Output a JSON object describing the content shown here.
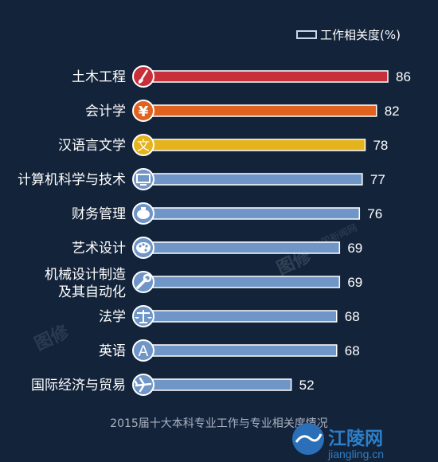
{
  "chart_data": {
    "type": "bar",
    "orientation": "horizontal",
    "legend": {
      "label": "工作相关度(%)",
      "position": "top-right"
    },
    "categories": [
      {
        "label": "土木工程",
        "value": 86,
        "color": "#c7303a",
        "icon": "brush-icon"
      },
      {
        "label": "会计学",
        "value": 82,
        "color": "#e0621f",
        "icon": "yen-icon"
      },
      {
        "label": "汉语言文学",
        "value": 78,
        "color": "#e4b31d",
        "icon": "wen-character-icon"
      },
      {
        "label": "计算机科学与技术",
        "value": 77,
        "color": "#6f96c6",
        "icon": "monitor-icon"
      },
      {
        "label": "财务管理",
        "value": 76,
        "color": "#6f96c6",
        "icon": "piggy-bank-icon"
      },
      {
        "label": "艺术设计",
        "value": 69,
        "color": "#6f96c6",
        "icon": "palette-icon"
      },
      {
        "label": "机械设计制造\n及其自动化",
        "value": 69,
        "color": "#6f96c6",
        "icon": "wrench-icon"
      },
      {
        "label": "法学",
        "value": 68,
        "color": "#6f96c6",
        "icon": "scales-icon"
      },
      {
        "label": "英语",
        "value": 68,
        "color": "#6f96c6",
        "icon": "letter-a-icon"
      },
      {
        "label": "国际经济与贸易",
        "value": 52,
        "color": "#6f96c6",
        "icon": "airplane-icon"
      }
    ],
    "caption": "2015届十大本科专业工作与专业相关度情况",
    "xlim": [
      0,
      86
    ],
    "grid": false
  },
  "watermark": {
    "main": "图修",
    "sub": "中国新闻网"
  },
  "logo": {
    "name": "江陵网",
    "url": "jiangling.cn"
  }
}
